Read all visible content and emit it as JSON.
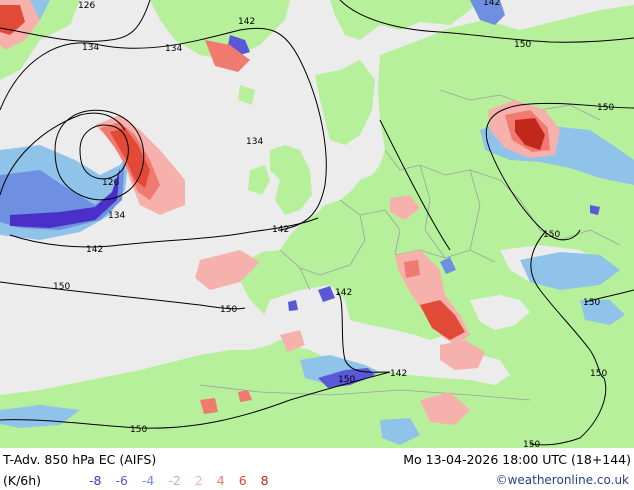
{
  "footer": {
    "title": "T-Adv. 850 hPa  EC (AIFS)",
    "valid_time": "Mo 13-04-2026 18:00 UTC (18+144)",
    "unit": "(K/6h)",
    "copyright": "©weatheronline.co.uk"
  },
  "legend": {
    "items": [
      {
        "label": "-8",
        "color": "#4b2fc9"
      },
      {
        "label": "-6",
        "color": "#5a58d8"
      },
      {
        "label": "-4",
        "color": "#6f8fe0"
      },
      {
        "label": "-2",
        "color": "#8fc3ea"
      },
      {
        "label": "2",
        "color": "#f7b1ad"
      },
      {
        "label": "4",
        "color": "#f07a70"
      },
      {
        "label": "6",
        "color": "#e04a37"
      },
      {
        "label": "8",
        "color": "#c0281c"
      }
    ]
  },
  "contour_labels": [
    {
      "label": "126"
    },
    {
      "label": "134"
    },
    {
      "label": "134"
    },
    {
      "label": "142"
    },
    {
      "label": "142"
    },
    {
      "label": "150"
    },
    {
      "label": "150"
    },
    {
      "label": "134"
    },
    {
      "label": "126"
    },
    {
      "label": "134"
    },
    {
      "label": "142"
    },
    {
      "label": "142"
    },
    {
      "label": "150"
    },
    {
      "label": "150"
    },
    {
      "label": "150"
    },
    {
      "label": "142"
    },
    {
      "label": "142"
    },
    {
      "label": "150"
    },
    {
      "label": "150"
    },
    {
      "label": "150"
    },
    {
      "label": "150"
    },
    {
      "label": "150"
    }
  ],
  "colors": {
    "sea": "#ececec",
    "land": "#b7f09a",
    "border": "#9aa0a8",
    "contour": "#000000"
  }
}
